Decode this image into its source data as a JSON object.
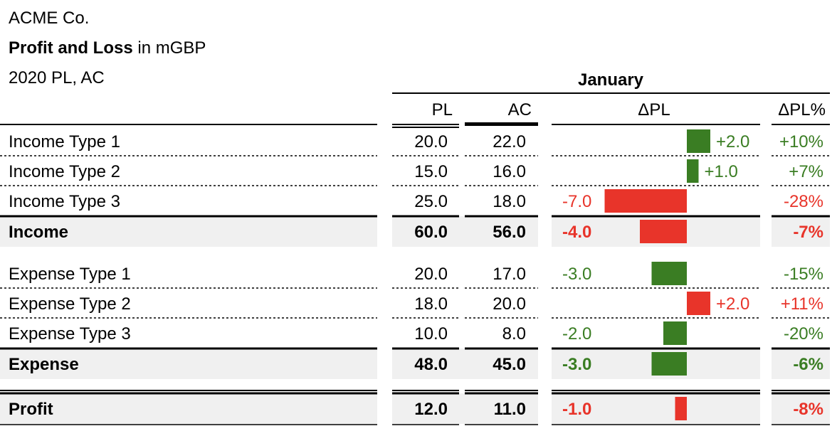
{
  "header": {
    "company": "ACME Co.",
    "title_bold": "Profit and Loss",
    "title_rest": " in mGBP",
    "scenario": "2020 PL, AC"
  },
  "chart_data": {
    "type": "table",
    "period": "January",
    "columns": [
      "PL",
      "AC",
      "ΔPL",
      "ΔPL%"
    ],
    "rows": [
      {
        "label": "Income Type 1",
        "pl": "20.0",
        "ac": "22.0",
        "delta": 2.0,
        "delta_label": "+2.0",
        "pct": "+10%",
        "kind": "item",
        "color": "#3a7d23"
      },
      {
        "label": "Income Type 2",
        "pl": "15.0",
        "ac": "16.0",
        "delta": 1.0,
        "delta_label": "+1.0",
        "pct": "+7%",
        "kind": "item",
        "color": "#3a7d23"
      },
      {
        "label": "Income Type 3",
        "pl": "25.0",
        "ac": "18.0",
        "delta": -7.0,
        "delta_label": "-7.0",
        "pct": "-28%",
        "kind": "item",
        "color": "#e8342a"
      },
      {
        "label": "Income",
        "pl": "60.0",
        "ac": "56.0",
        "delta": -4.0,
        "delta_label": "-4.0",
        "pct": "-7%",
        "kind": "total",
        "color": "#e8342a"
      },
      {
        "label": "Expense Type 1",
        "pl": "20.0",
        "ac": "17.0",
        "delta": -3.0,
        "delta_label": "-3.0",
        "pct": "-15%",
        "kind": "item",
        "color": "#3a7d23"
      },
      {
        "label": "Expense Type 2",
        "pl": "18.0",
        "ac": "20.0",
        "delta": 2.0,
        "delta_label": "+2.0",
        "pct": "+11%",
        "kind": "item",
        "color": "#e8342a"
      },
      {
        "label": "Expense Type 3",
        "pl": "10.0",
        "ac": "8.0",
        "delta": -2.0,
        "delta_label": "-2.0",
        "pct": "-20%",
        "kind": "item",
        "color": "#3a7d23"
      },
      {
        "label": "Expense",
        "pl": "48.0",
        "ac": "45.0",
        "delta": -3.0,
        "delta_label": "-3.0",
        "pct": "-6%",
        "kind": "total",
        "color": "#3a7d23"
      },
      {
        "label": "Profit",
        "pl": "12.0",
        "ac": "11.0",
        "delta": -1.0,
        "delta_label": "-1.0",
        "pct": "-8%",
        "kind": "total",
        "color": "#e8342a"
      }
    ],
    "colors": {
      "good": "#3a7d23",
      "bad": "#e8342a",
      "total_bg": "#f0f0f0"
    }
  }
}
